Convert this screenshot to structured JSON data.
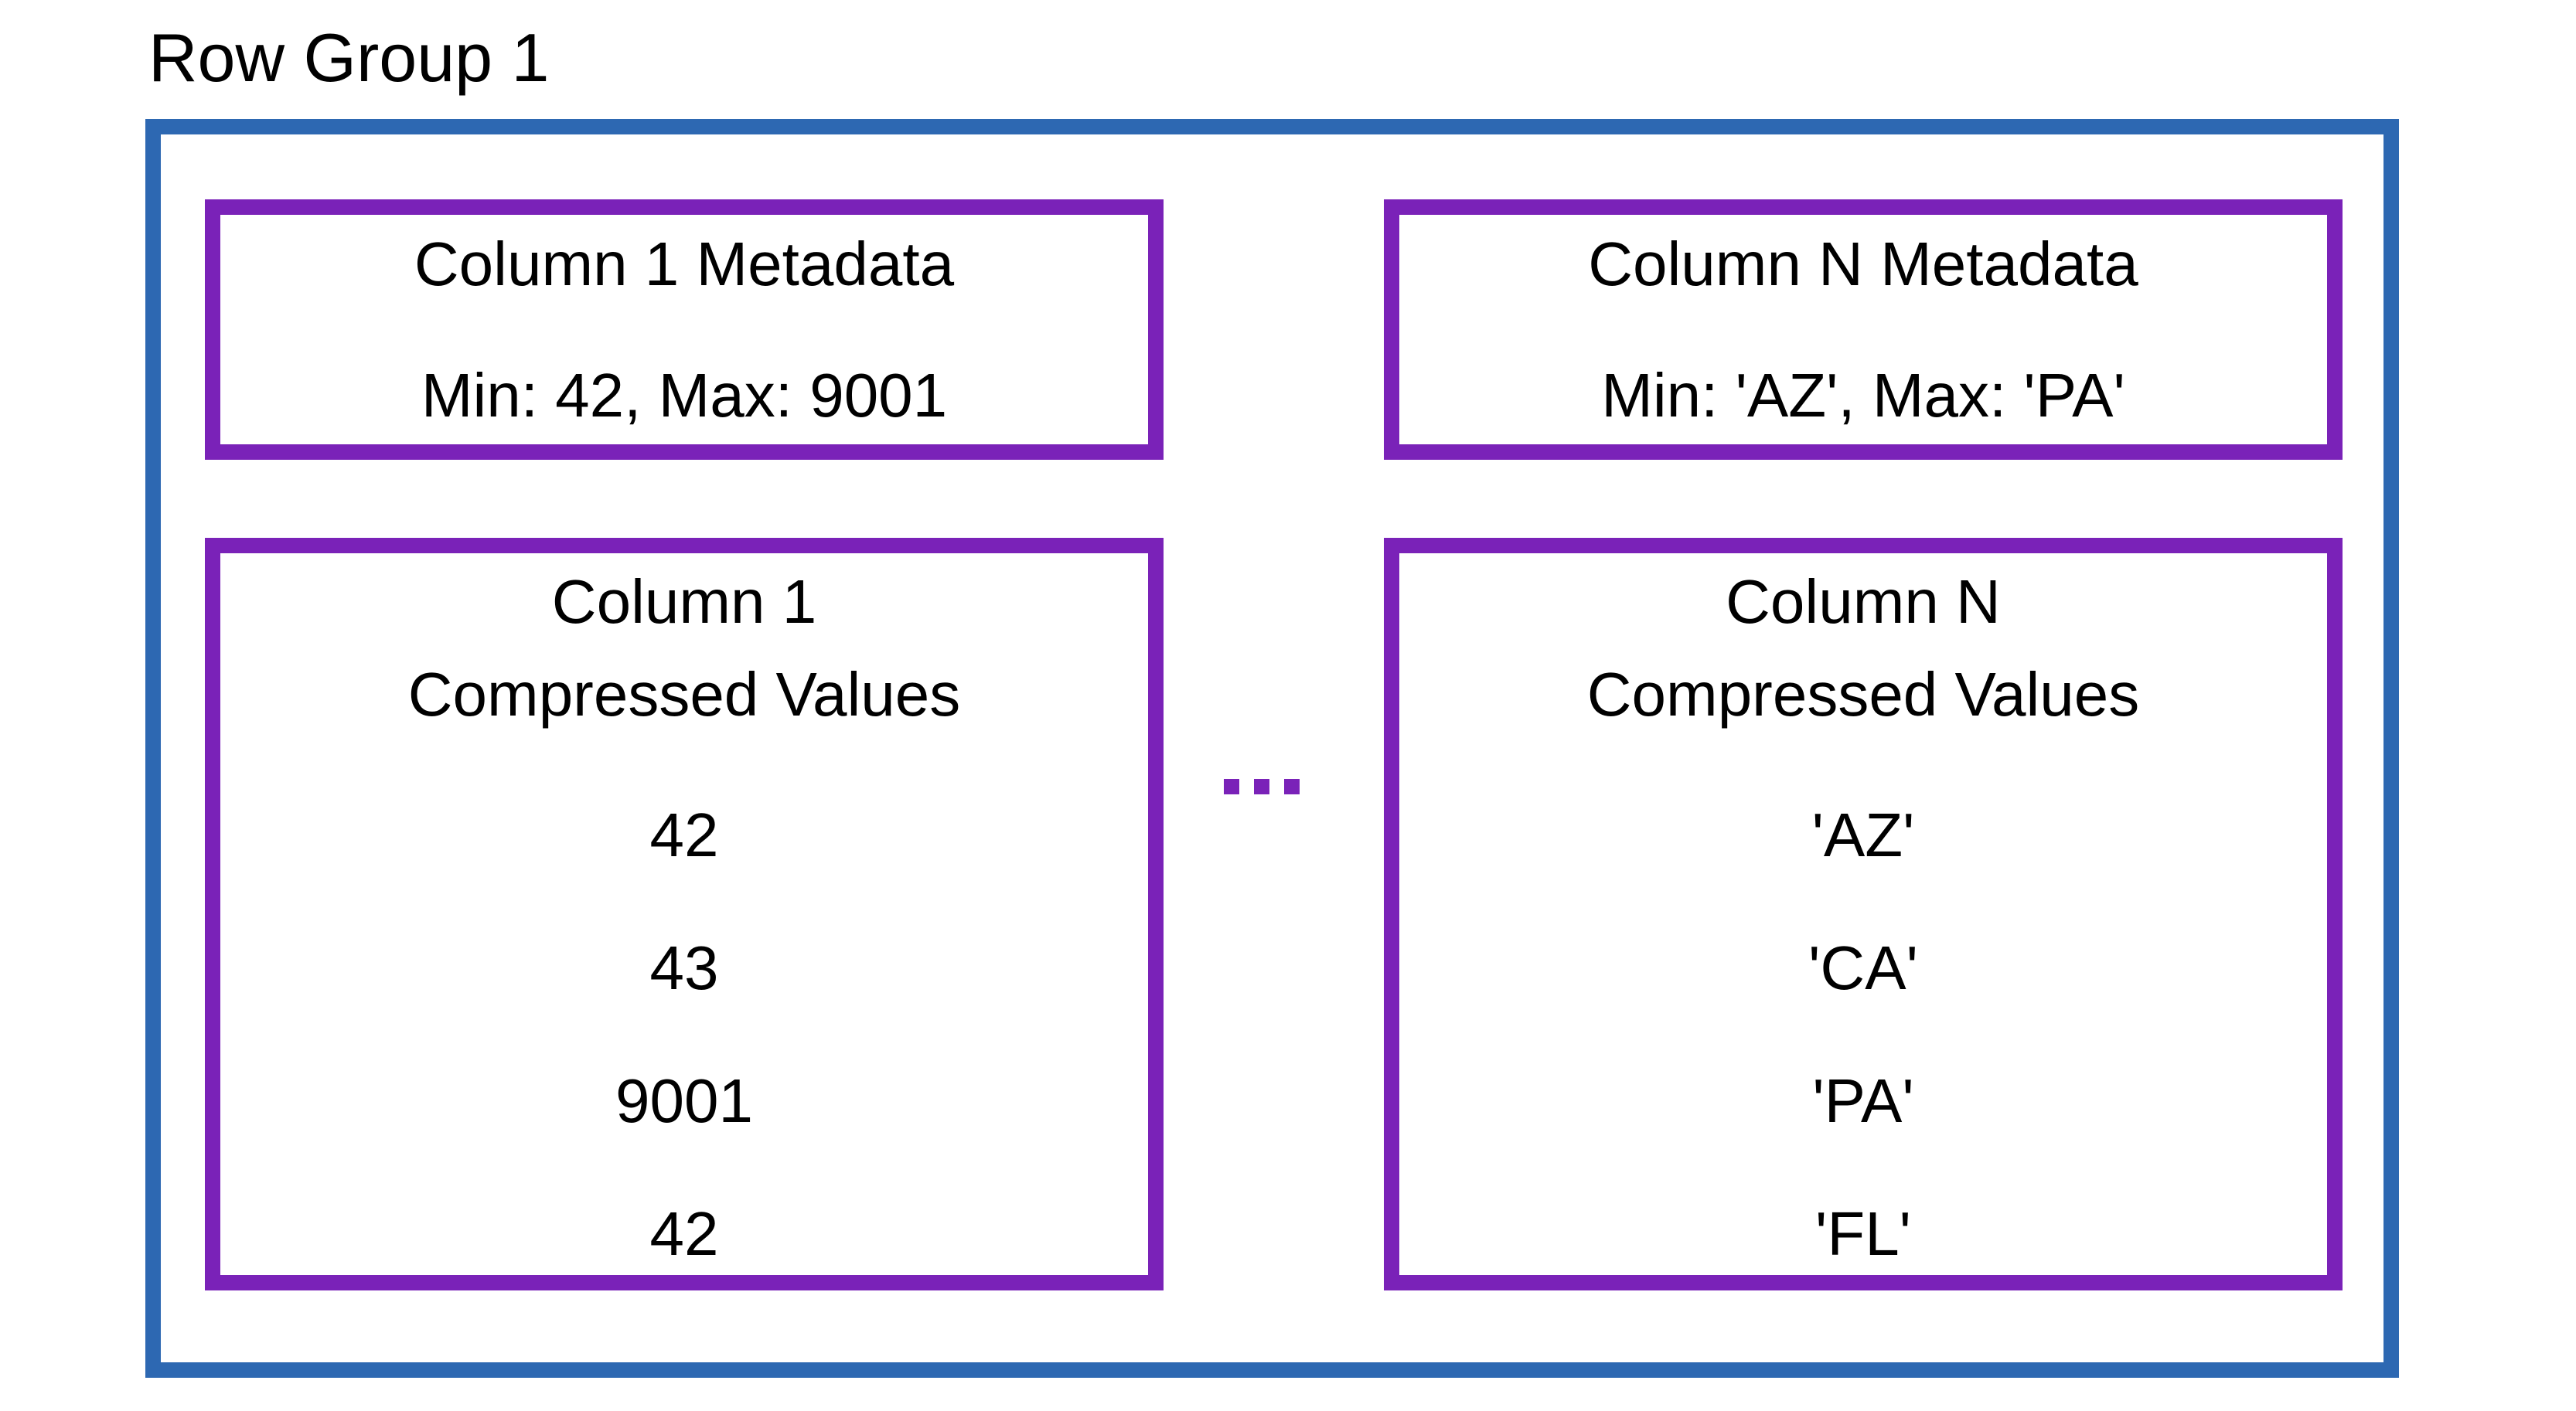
{
  "diagram": {
    "title": "Row Group 1",
    "ellipsis": "...",
    "colors": {
      "outer_border": "#2d68b2",
      "inner_border": "#7a22b8",
      "text": "#000000",
      "background": "#ffffff"
    },
    "columns": [
      {
        "metadata": {
          "title": "Column 1 Metadata",
          "stats": "Min: 42, Max: 9001"
        },
        "values": {
          "title_line1": "Column 1",
          "title_line2": "Compressed Values",
          "items": [
            "42",
            "43",
            "9001",
            "42"
          ]
        }
      },
      {
        "metadata": {
          "title": "Column N Metadata",
          "stats": "Min: 'AZ', Max: 'PA'"
        },
        "values": {
          "title_line1": "Column N",
          "title_line2": "Compressed Values",
          "items": [
            "'AZ'",
            "'CA'",
            "'PA'",
            "'FL'"
          ]
        }
      }
    ]
  }
}
